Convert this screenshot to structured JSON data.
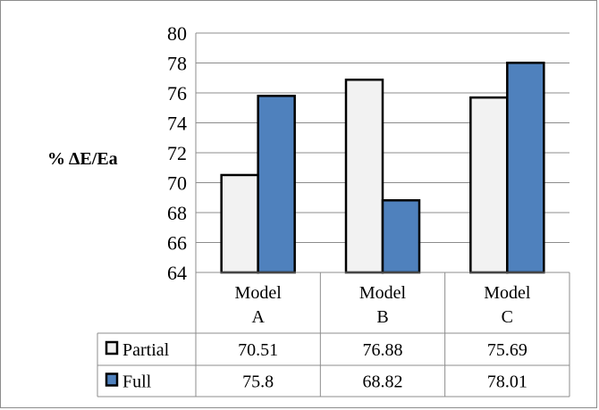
{
  "chart_data": {
    "type": "bar",
    "ylabel": "% ΔE/Ea",
    "ylim": [
      64,
      80
    ],
    "yticks": [
      64,
      66,
      68,
      70,
      72,
      74,
      76,
      78,
      80
    ],
    "grid": true,
    "categories": [
      [
        "Model",
        "A"
      ],
      [
        "Model",
        "B"
      ],
      [
        "Model",
        "C"
      ]
    ],
    "series": [
      {
        "name": "Partial",
        "color": "#f2f2f2",
        "values": [
          70.51,
          76.88,
          75.69
        ],
        "labels": [
          "70.51",
          "76.88",
          "75.69"
        ]
      },
      {
        "name": "Full",
        "color": "#4f81bd",
        "values": [
          75.8,
          68.82,
          78.01
        ],
        "labels": [
          "75.8",
          "68.82",
          "78.01"
        ]
      }
    ],
    "legend": "data-table"
  }
}
